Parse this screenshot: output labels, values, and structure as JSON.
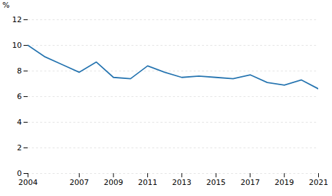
{
  "chart_data": {
    "type": "line",
    "x": [
      2004,
      2005,
      2006,
      2007,
      2008,
      2009,
      2010,
      2011,
      2012,
      2013,
      2014,
      2015,
      2016,
      2017,
      2018,
      2019,
      2020,
      2021
    ],
    "values": [
      10.0,
      9.1,
      8.5,
      7.9,
      8.7,
      7.5,
      7.4,
      8.4,
      7.9,
      7.5,
      7.6,
      7.5,
      7.4,
      7.7,
      7.1,
      6.9,
      7.3,
      6.6
    ],
    "color": "#2574b0",
    "xlim": [
      2004,
      2021
    ],
    "xticks": [
      2004,
      2007,
      2009,
      2011,
      2013,
      2015,
      2017,
      2019,
      2021
    ],
    "ylim": [
      0,
      12
    ],
    "yticks": [
      0,
      2,
      4,
      6,
      8,
      10,
      12
    ],
    "ylabel": "%",
    "grid": true
  }
}
